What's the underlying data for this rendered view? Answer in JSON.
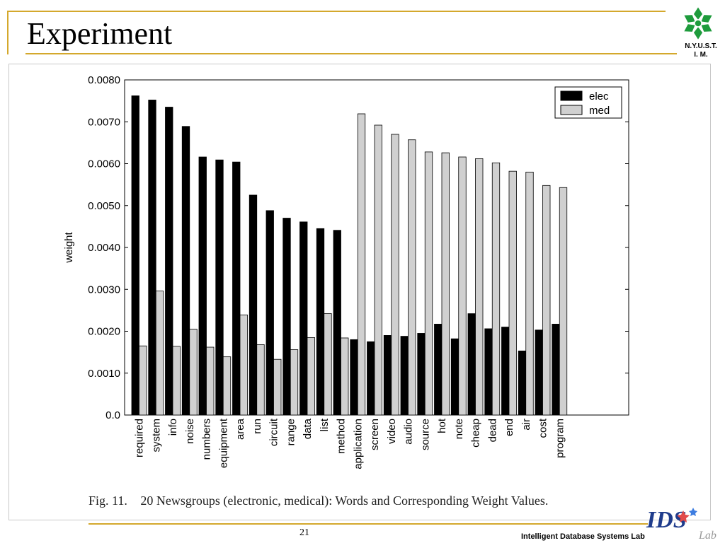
{
  "slide": {
    "title": "Experiment",
    "logo_caption_line1": "N.Y.U.S.T.",
    "logo_caption_line2": "I. M.",
    "page_number": "21",
    "lab_name": "Intelligent Database Systems Lab",
    "ids_logo_letters": "IDS",
    "ids_logo_subtitle": "Lab",
    "colors": {
      "accent_line": "#d4a82c",
      "logo_green": "#1e9b3c",
      "ids_blue": "#1f3c8c"
    },
    "icons": {
      "logo": "nyust-flower-logo",
      "ids": "ids-lab-logo"
    }
  },
  "figure": {
    "caption_label": "Fig. 11.",
    "caption_text": "20 Newsgroups (electronic, medical): Words and Corresponding Weight Values."
  },
  "chart_data": {
    "type": "bar",
    "ylabel": "weight",
    "xlabel": "",
    "title": "",
    "ylim": [
      0,
      0.008
    ],
    "yticks": [
      "0.0",
      "0.0010",
      "0.0020",
      "0.0030",
      "0.0040",
      "0.0050",
      "0.0060",
      "0.0070",
      "0.0080"
    ],
    "ytick_values": [
      0,
      0.001,
      0.002,
      0.003,
      0.004,
      0.005,
      0.006,
      0.007,
      0.008
    ],
    "legend_position": "top-right",
    "grid": false,
    "categories": [
      "required",
      "system",
      "info",
      "noise",
      "numbers",
      "equipment",
      "area",
      "run",
      "circuit",
      "range",
      "data",
      "list",
      "method",
      "application",
      "screen",
      "video",
      "audio",
      "source",
      "hot",
      "note",
      "cheap",
      "dead",
      "end",
      "air",
      "cost",
      "program"
    ],
    "series": [
      {
        "name": "elec",
        "color": "#000000",
        "values": [
          0.00762,
          0.00752,
          0.00735,
          0.00689,
          0.00616,
          0.00609,
          0.00604,
          0.00525,
          0.00488,
          0.0047,
          0.00461,
          0.00445,
          0.00441,
          0.0018,
          0.00175,
          0.0019,
          0.00188,
          0.00195,
          0.00217,
          0.00182,
          0.00242,
          0.00206,
          0.0021,
          0.00153,
          0.00203,
          0.00217
        ]
      },
      {
        "name": "med",
        "color": "#d0d0d0",
        "values": [
          0.00165,
          0.00296,
          0.00164,
          0.00205,
          0.00162,
          0.00139,
          0.00239,
          0.00168,
          0.00133,
          0.00156,
          0.00185,
          0.00242,
          0.00184,
          0.00719,
          0.00692,
          0.0067,
          0.00657,
          0.00628,
          0.00626,
          0.00616,
          0.00612,
          0.00602,
          0.00582,
          0.0058,
          0.00548,
          0.00543
        ]
      }
    ]
  }
}
